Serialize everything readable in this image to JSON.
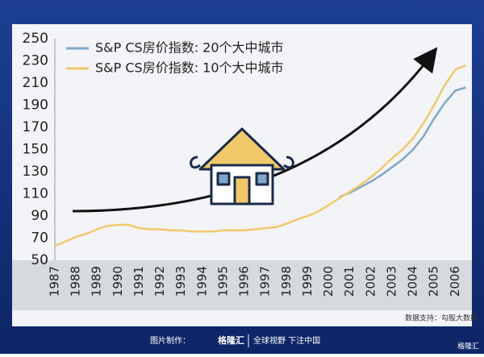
{
  "chart_data": {
    "type": "line",
    "x": [
      1987,
      1987.5,
      1988,
      1988.5,
      1989,
      1989.5,
      1990,
      1990.5,
      1991,
      1991.5,
      1992,
      1992.5,
      1993,
      1993.5,
      1994,
      1994.5,
      1995,
      1995.5,
      1996,
      1996.5,
      1997,
      1997.5,
      1998,
      1998.5,
      1999,
      1999.5,
      2000,
      2000.5,
      2001,
      2001.5,
      2002,
      2002.5,
      2003,
      2003.5,
      2004,
      2004.5,
      2005,
      2005.5,
      2006,
      2006.5
    ],
    "series": [
      {
        "name": "S&P CS房价指数: 20个大中城市",
        "color": "#7fa6c8",
        "values": [
          null,
          null,
          null,
          null,
          null,
          null,
          null,
          null,
          null,
          null,
          null,
          null,
          null,
          null,
          null,
          null,
          null,
          null,
          null,
          null,
          null,
          null,
          null,
          null,
          null,
          null,
          null,
          107,
          111,
          116,
          121,
          127,
          134,
          141,
          150,
          162,
          178,
          192,
          203,
          206
        ]
      },
      {
        "name": "S&P CS房价指数: 10个大中城市",
        "color": "#f0c86a",
        "values": [
          63,
          67,
          71,
          74,
          78,
          81,
          82,
          82,
          79,
          78,
          78,
          77,
          77,
          76,
          76,
          76,
          77,
          77,
          77,
          78,
          79,
          80,
          83,
          87,
          90,
          94,
          100,
          106,
          112,
          118,
          125,
          133,
          142,
          150,
          160,
          174,
          190,
          208,
          222,
          226
        ]
      }
    ],
    "xlim": [
      1987,
      2006.6
    ],
    "xticks": [
      1987,
      1988,
      1989,
      1990,
      1991,
      1992,
      1993,
      1994,
      1995,
      1996,
      1997,
      1998,
      1999,
      2000,
      2001,
      2002,
      2003,
      2004,
      2005,
      2006
    ],
    "ylim": [
      50,
      250
    ],
    "yticks": [
      50,
      70,
      90,
      110,
      130,
      150,
      170,
      190,
      210,
      230,
      250
    ],
    "grid": false,
    "legend": "top-left",
    "source": "数据支持：勾股大数据"
  },
  "footer": {
    "made_by": "图片制作：",
    "brand": "格隆汇",
    "slogan": "全球视野 下注中国",
    "corner": "格隆汇"
  }
}
